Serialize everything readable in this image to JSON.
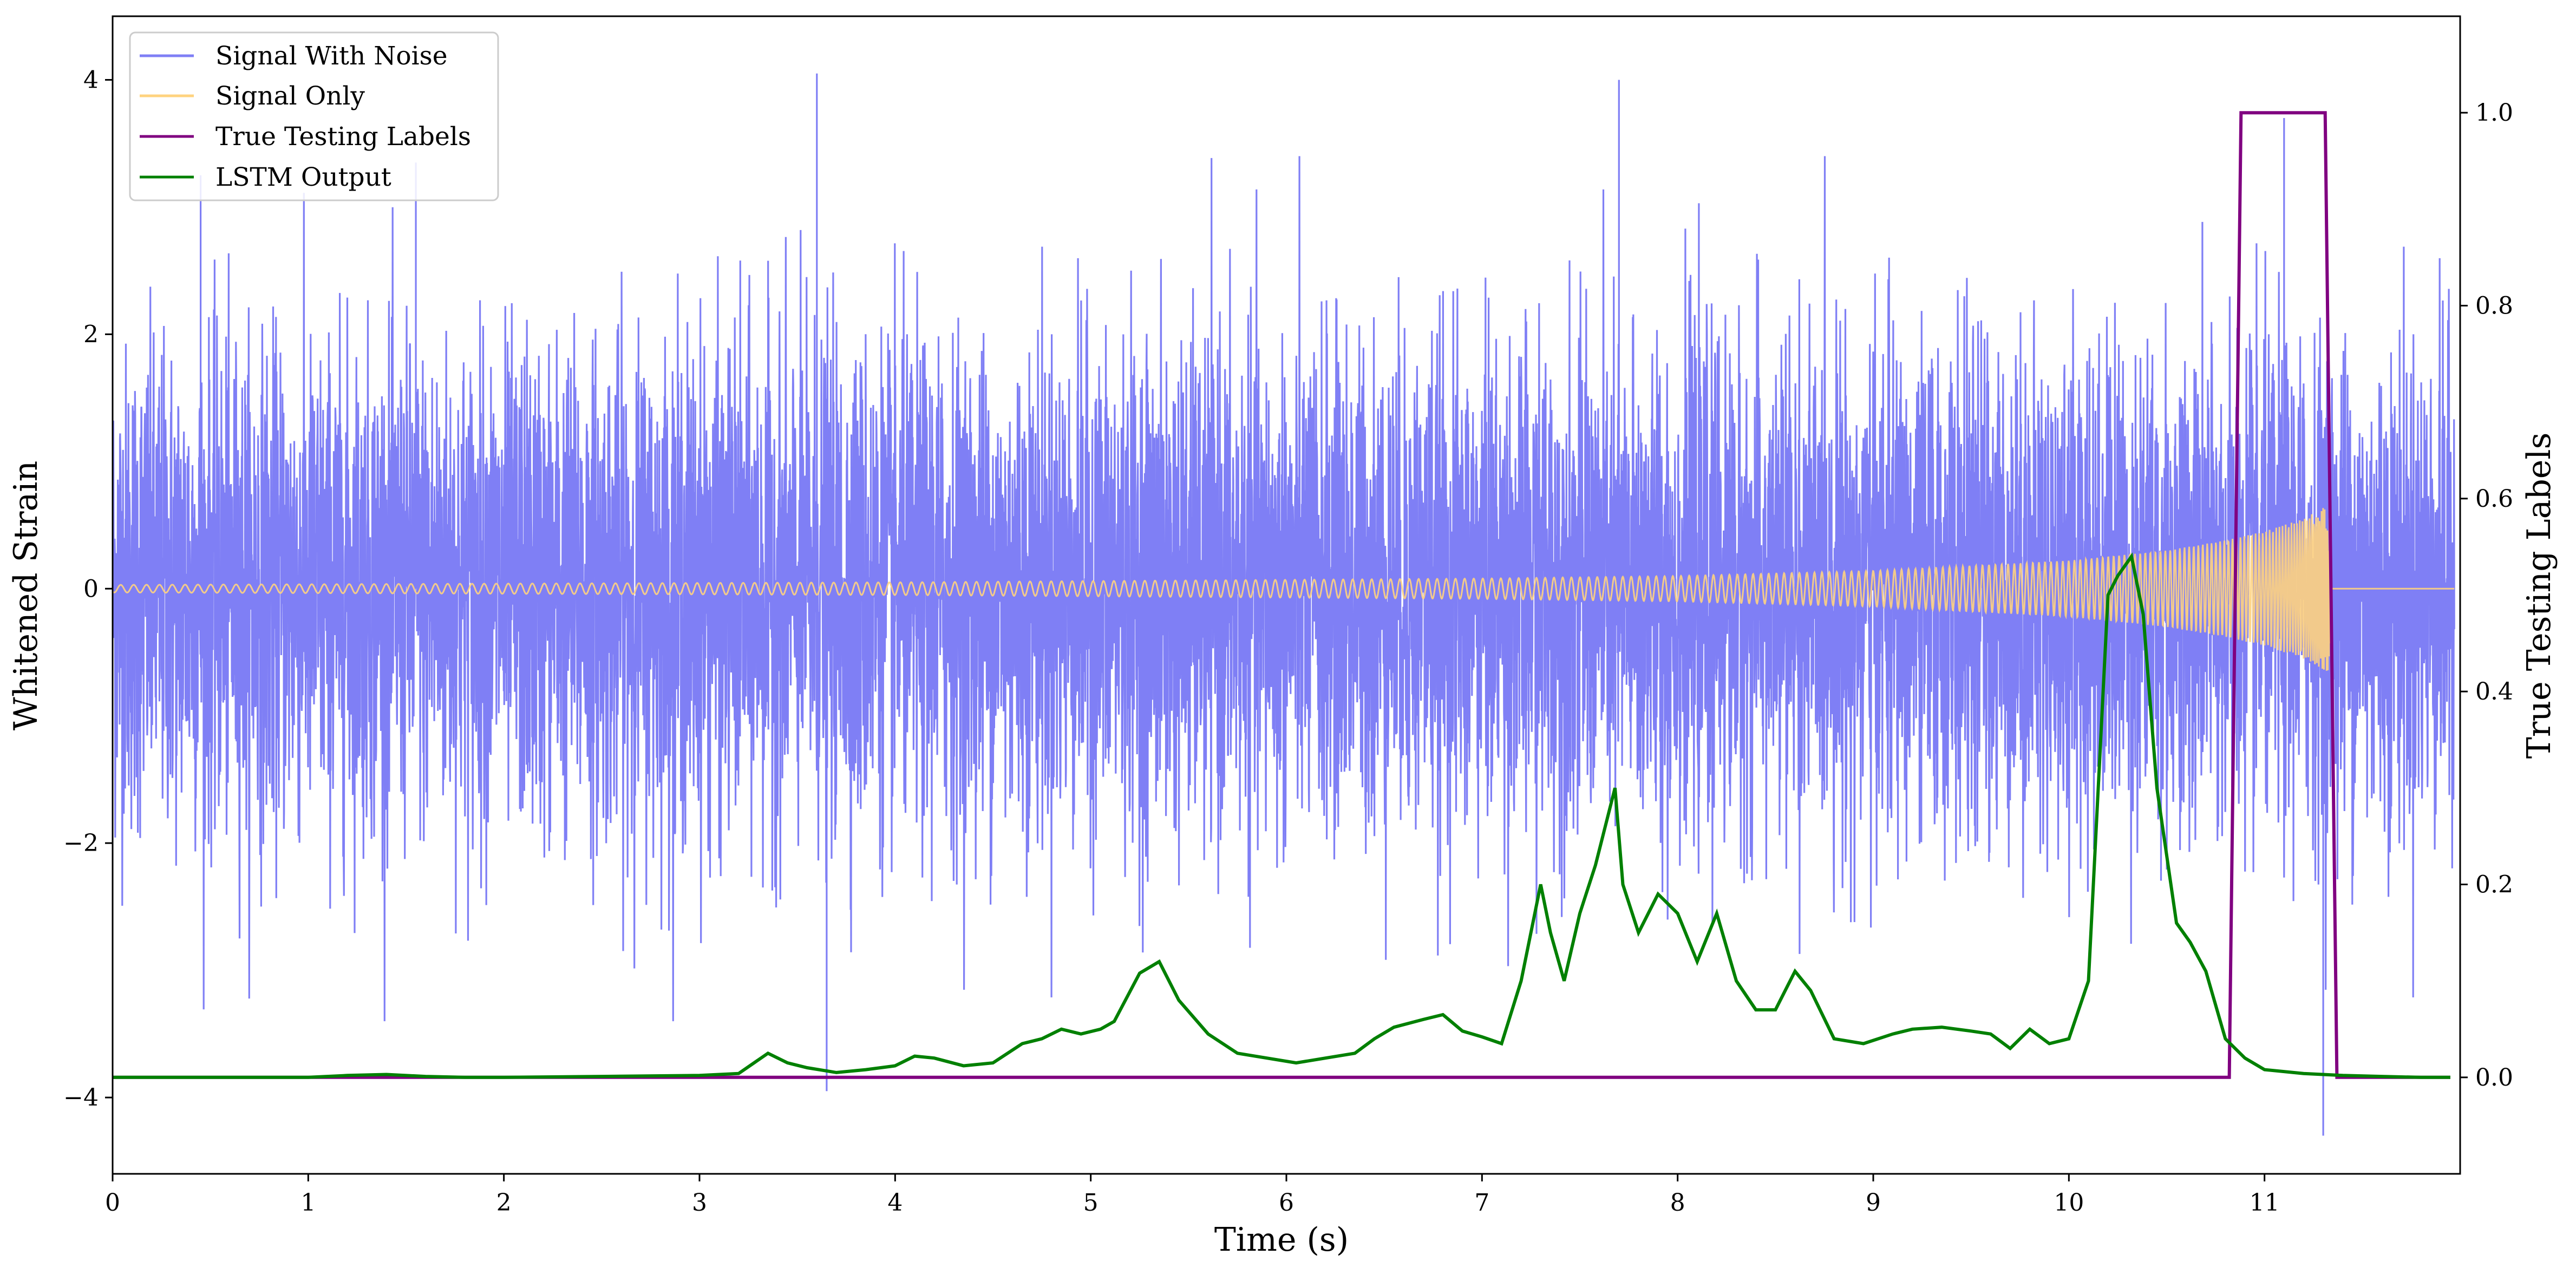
{
  "chart_data": {
    "type": "line",
    "xlabel": "Time (s)",
    "ylabel_left": "Whitened Strain",
    "ylabel_right": "True Testing Labels",
    "xlim": [
      0,
      12
    ],
    "ylim_left": [
      -4.6,
      4.5
    ],
    "ylim_right": [
      -0.1,
      1.1
    ],
    "x_ticks": [
      0,
      1,
      2,
      3,
      4,
      5,
      6,
      7,
      8,
      9,
      10,
      11
    ],
    "x_tick_labels": [
      "0",
      "1",
      "2",
      "3",
      "4",
      "5",
      "6",
      "7",
      "8",
      "9",
      "10",
      "11"
    ],
    "y_left_ticks": [
      -4,
      -2,
      0,
      2,
      4
    ],
    "y_left_tick_labels": [
      "−4",
      "−2",
      "0",
      "2",
      "4"
    ],
    "y_right_ticks": [
      0.0,
      0.2,
      0.4,
      0.6,
      0.8,
      1.0
    ],
    "y_right_tick_labels": [
      "0.0",
      "0.2",
      "0.4",
      "0.6",
      "0.8",
      "1.0"
    ],
    "grid": false,
    "legend_position": "top-left",
    "legend": [
      {
        "name": "Signal With Noise",
        "color": "#7f7ff5"
      },
      {
        "name": "Signal Only",
        "color": "#ffd37f"
      },
      {
        "name": "True Testing Labels",
        "color": "#800080"
      },
      {
        "name": "LSTM Output",
        "color": "#008000"
      }
    ],
    "series": [
      {
        "name": "Signal With Noise",
        "axis": "left",
        "color": "#7f7ff5",
        "description_range": [
          -4.3,
          4.1
        ],
        "approx_std": 0.95,
        "notable_spikes": [
          [
            0.45,
            3.25
          ],
          [
            1.55,
            3.35
          ],
          [
            3.6,
            4.05
          ],
          [
            3.65,
            -3.95
          ],
          [
            7.7,
            4.0
          ],
          [
            11.3,
            -4.3
          ],
          [
            11.1,
            3.7
          ]
        ]
      },
      {
        "name": "Signal Only",
        "axis": "left",
        "color": "#ffd37f",
        "type": "chirp",
        "envelope": [
          [
            0,
            0.03
          ],
          [
            4,
            0.05
          ],
          [
            7,
            0.08
          ],
          [
            8,
            0.1
          ],
          [
            9,
            0.14
          ],
          [
            10,
            0.22
          ],
          [
            10.5,
            0.3
          ],
          [
            10.8,
            0.38
          ],
          [
            11.0,
            0.45
          ],
          [
            11.2,
            0.55
          ],
          [
            11.33,
            0.66
          ],
          [
            11.34,
            0
          ],
          [
            12,
            0
          ]
        ]
      },
      {
        "name": "True Testing Labels",
        "axis": "right",
        "color": "#800080",
        "x": [
          0,
          10.82,
          10.88,
          11.31,
          11.37,
          11.95
        ],
        "values": [
          0,
          0,
          1,
          1,
          0,
          0
        ]
      },
      {
        "name": "LSTM Output",
        "axis": "right",
        "color": "#008000",
        "x": [
          0,
          1.0,
          1.2,
          1.4,
          1.6,
          1.8,
          2.0,
          2.5,
          3.0,
          3.2,
          3.35,
          3.45,
          3.55,
          3.7,
          3.85,
          4.0,
          4.1,
          4.2,
          4.35,
          4.5,
          4.65,
          4.75,
          4.85,
          4.95,
          5.05,
          5.12,
          5.25,
          5.35,
          5.45,
          5.6,
          5.75,
          5.9,
          6.05,
          6.2,
          6.35,
          6.45,
          6.55,
          6.7,
          6.8,
          6.9,
          7.0,
          7.1,
          7.2,
          7.3,
          7.35,
          7.42,
          7.5,
          7.58,
          7.68,
          7.72,
          7.8,
          7.9,
          8.0,
          8.1,
          8.2,
          8.3,
          8.4,
          8.5,
          8.6,
          8.68,
          8.8,
          8.95,
          9.1,
          9.2,
          9.35,
          9.5,
          9.6,
          9.7,
          9.8,
          9.9,
          10.0,
          10.1,
          10.2,
          10.25,
          10.32,
          10.38,
          10.45,
          10.55,
          10.62,
          10.7,
          10.8,
          10.9,
          11.0,
          11.2,
          11.4,
          11.6,
          11.8,
          11.95
        ],
        "values": [
          0.0,
          0.0,
          0.002,
          0.003,
          0.001,
          0.0,
          0.0,
          0.001,
          0.002,
          0.004,
          0.025,
          0.015,
          0.01,
          0.005,
          0.008,
          0.012,
          0.022,
          0.02,
          0.012,
          0.015,
          0.035,
          0.04,
          0.05,
          0.045,
          0.05,
          0.058,
          0.108,
          0.12,
          0.08,
          0.045,
          0.025,
          0.02,
          0.015,
          0.02,
          0.025,
          0.04,
          0.052,
          0.06,
          0.065,
          0.048,
          0.042,
          0.035,
          0.1,
          0.2,
          0.15,
          0.1,
          0.17,
          0.22,
          0.3,
          0.2,
          0.15,
          0.19,
          0.17,
          0.12,
          0.17,
          0.1,
          0.07,
          0.07,
          0.11,
          0.09,
          0.04,
          0.035,
          0.045,
          0.05,
          0.052,
          0.048,
          0.045,
          0.03,
          0.05,
          0.035,
          0.04,
          0.1,
          0.5,
          0.52,
          0.54,
          0.48,
          0.3,
          0.16,
          0.14,
          0.11,
          0.04,
          0.02,
          0.008,
          0.004,
          0.002,
          0.001,
          0.0,
          0.0
        ]
      }
    ]
  }
}
